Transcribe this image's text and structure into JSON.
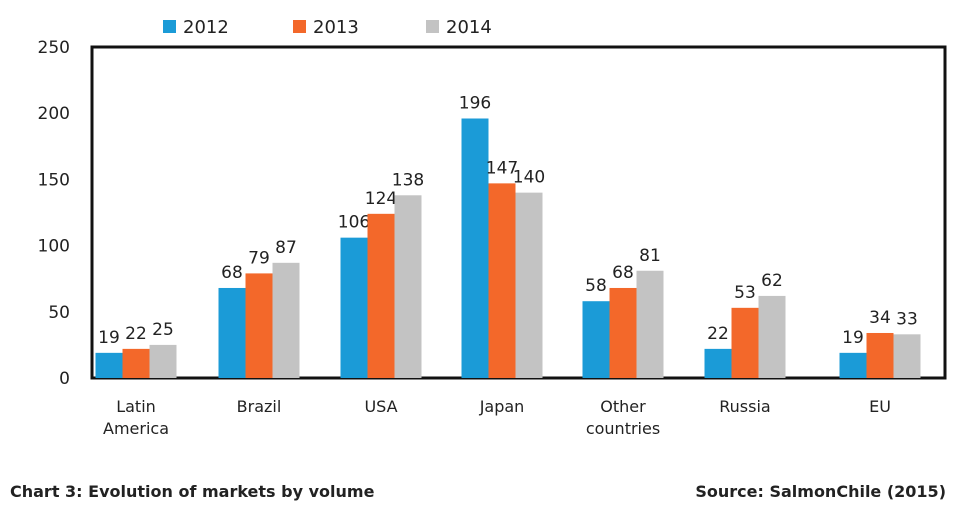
{
  "chart_data": {
    "type": "bar",
    "categories": [
      [
        "Latin",
        "America"
      ],
      [
        "Brazil"
      ],
      [
        "USA"
      ],
      [
        "Japan"
      ],
      [
        "Other",
        "countries"
      ],
      [
        "Russia"
      ],
      [
        "EU"
      ]
    ],
    "series": [
      {
        "name": "2012",
        "color": "#1b9bd7",
        "values": [
          19,
          68,
          106,
          196,
          58,
          22,
          19
        ]
      },
      {
        "name": "2013",
        "color": "#f3682a",
        "values": [
          22,
          79,
          124,
          147,
          68,
          53,
          34
        ]
      },
      {
        "name": "2014",
        "color": "#c3c3c3",
        "values": [
          25,
          87,
          138,
          140,
          81,
          62,
          33
        ]
      }
    ],
    "ylim": [
      0,
      250
    ],
    "yticks": [
      0,
      50,
      100,
      150,
      200,
      250
    ],
    "legend_position": "top",
    "grid": false,
    "title": "",
    "xlabel": "",
    "ylabel": ""
  },
  "caption": "Chart 3: Evolution of markets by volume",
  "source": "Source: SalmonChile (2015)"
}
